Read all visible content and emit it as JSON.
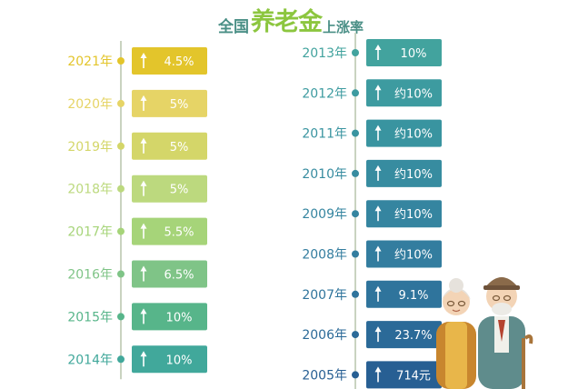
{
  "title": {
    "part1": "全国",
    "part2": "养老金",
    "part3": "上涨率"
  },
  "colors": {
    "title_text": "#4a8f86",
    "title_accent": "#8cc63f",
    "connector_line": "#c9d3c0",
    "dot": "#5aa7a0",
    "bar_label": "#ffffff"
  },
  "chart_data": {
    "type": "bar",
    "title": "全国养老金上涨率",
    "orientation": "horizontal",
    "columns": [
      {
        "rows": [
          {
            "year": "2021年",
            "label": "4.5%",
            "value": 4.5,
            "color": "#e3c52b"
          },
          {
            "year": "2020年",
            "label": "5%",
            "value": 5,
            "color": "#e6d466"
          },
          {
            "year": "2019年",
            "label": "5%",
            "value": 5,
            "color": "#d4d669"
          },
          {
            "year": "2018年",
            "label": "5%",
            "value": 5,
            "color": "#bcd97e"
          },
          {
            "year": "2017年",
            "label": "5.5%",
            "value": 5.5,
            "color": "#a6d479"
          },
          {
            "year": "2016年",
            "label": "6.5%",
            "value": 6.5,
            "color": "#7fc487"
          },
          {
            "year": "2015年",
            "label": "10%",
            "value": 10,
            "color": "#57b58a"
          },
          {
            "year": "2014年",
            "label": "10%",
            "value": 10,
            "color": "#41a89b"
          }
        ]
      },
      {
        "rows": [
          {
            "year": "2013年",
            "label": "10%",
            "value": 10,
            "color": "#42a39e"
          },
          {
            "year": "2012年",
            "label": "约10%",
            "value": 10,
            "color": "#3d9ba0"
          },
          {
            "year": "2011年",
            "label": "约10%",
            "value": 10,
            "color": "#3994a0"
          },
          {
            "year": "2010年",
            "label": "约10%",
            "value": 10,
            "color": "#378ca0"
          },
          {
            "year": "2009年",
            "label": "约10%",
            "value": 10,
            "color": "#3585a0"
          },
          {
            "year": "2008年",
            "label": "约10%",
            "value": 10,
            "color": "#337d9f"
          },
          {
            "year": "2007年",
            "label": "9.1%",
            "value": 9.1,
            "color": "#2f749c"
          },
          {
            "year": "2006年",
            "label": "23.7%",
            "value": 23.7,
            "color": "#2b6a98"
          },
          {
            "year": "2005年",
            "label": "714元",
            "value": 714,
            "color": "#275f93"
          }
        ]
      }
    ]
  }
}
